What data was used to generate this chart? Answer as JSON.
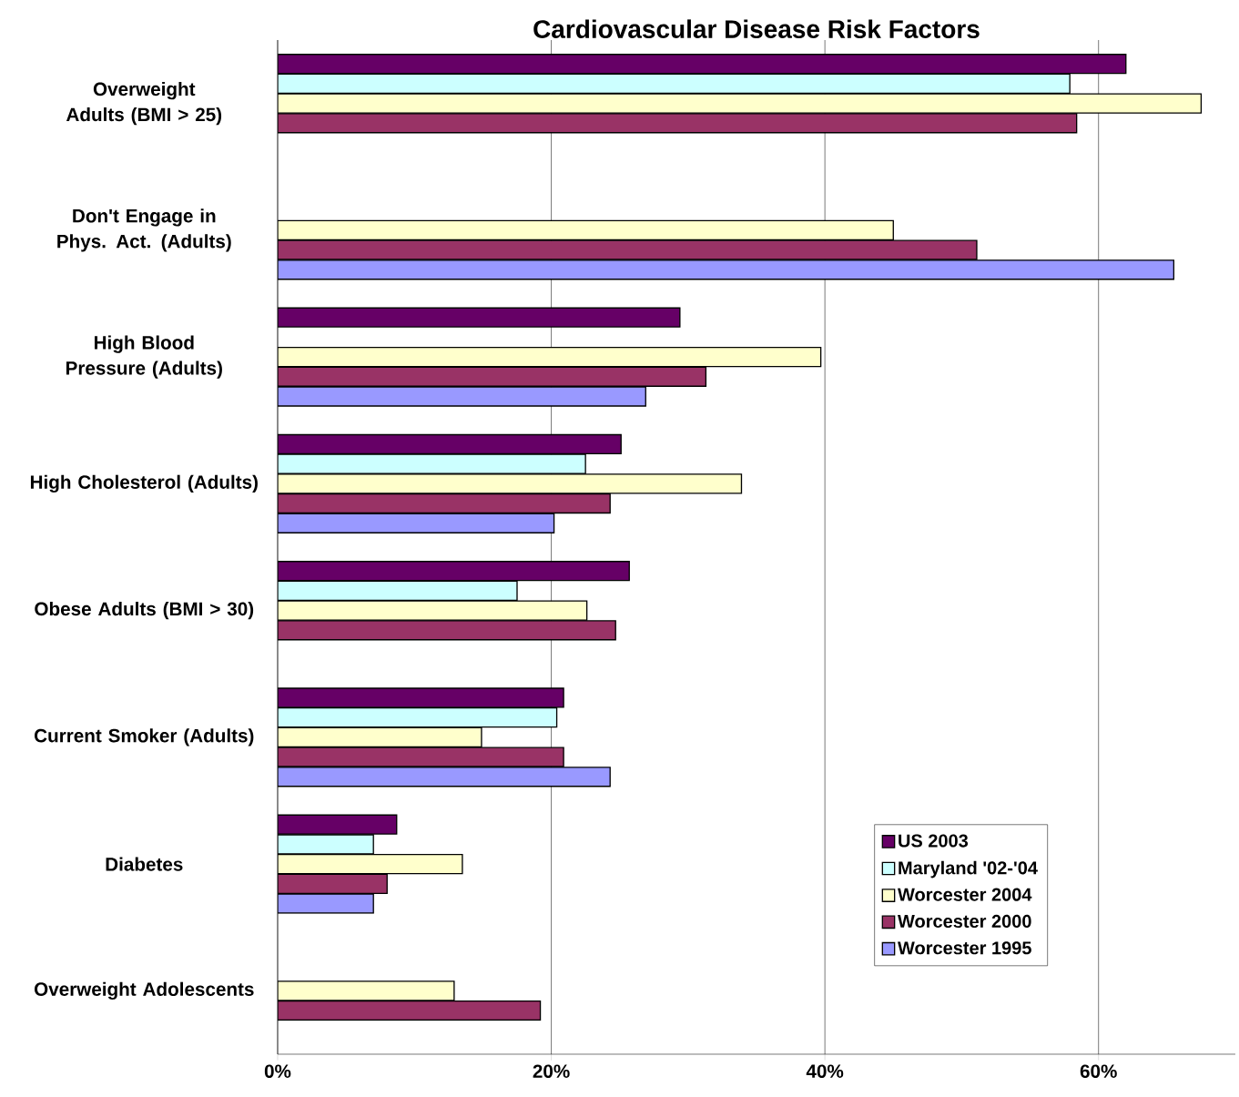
{
  "chart_data": {
    "type": "bar",
    "orientation": "horizontal",
    "title": "Cardiovascular Disease Risk Factors",
    "categories": [
      "Overweight Adults (BMI > 25)",
      "Don't Engage in Phys. Act. (Adults)",
      "High Blood Pressure (Adults)",
      "High Cholesterol (Adults)",
      "Obese Adults (BMI > 30)",
      "Current Smoker (Adults)",
      "Diabetes",
      "Overweight Adolescents"
    ],
    "series": [
      {
        "name": "US 2003",
        "color": "#660066",
        "values": [
          62,
          null,
          29.4,
          25.1,
          25.7,
          20.9,
          8.7,
          null
        ]
      },
      {
        "name": "Maryland '02-'04",
        "color": "#ccffff",
        "values": [
          57.9,
          null,
          null,
          22.5,
          17.5,
          20.4,
          7,
          null
        ]
      },
      {
        "name": "Worcester 2004",
        "color": "#ffffcc",
        "values": [
          67.5,
          45,
          39.7,
          33.9,
          22.6,
          14.9,
          13.5,
          12.9
        ]
      },
      {
        "name": "Worcester 2000",
        "color": "#993366",
        "values": [
          58.4,
          51.1,
          31.3,
          24.3,
          24.7,
          20.9,
          8,
          19.2
        ]
      },
      {
        "name": "Worcester 1995",
        "color": "#9999ff",
        "values": [
          null,
          65.5,
          26.9,
          20.2,
          null,
          24.3,
          7,
          null
        ]
      }
    ],
    "xlim": [
      0,
      70
    ],
    "xticks": [
      {
        "value": 0,
        "label": "0%"
      },
      {
        "value": 20,
        "label": "20%"
      },
      {
        "value": 40,
        "label": "40%"
      },
      {
        "value": 60,
        "label": "60%"
      }
    ],
    "grid": "x",
    "legend": "bottom right"
  }
}
